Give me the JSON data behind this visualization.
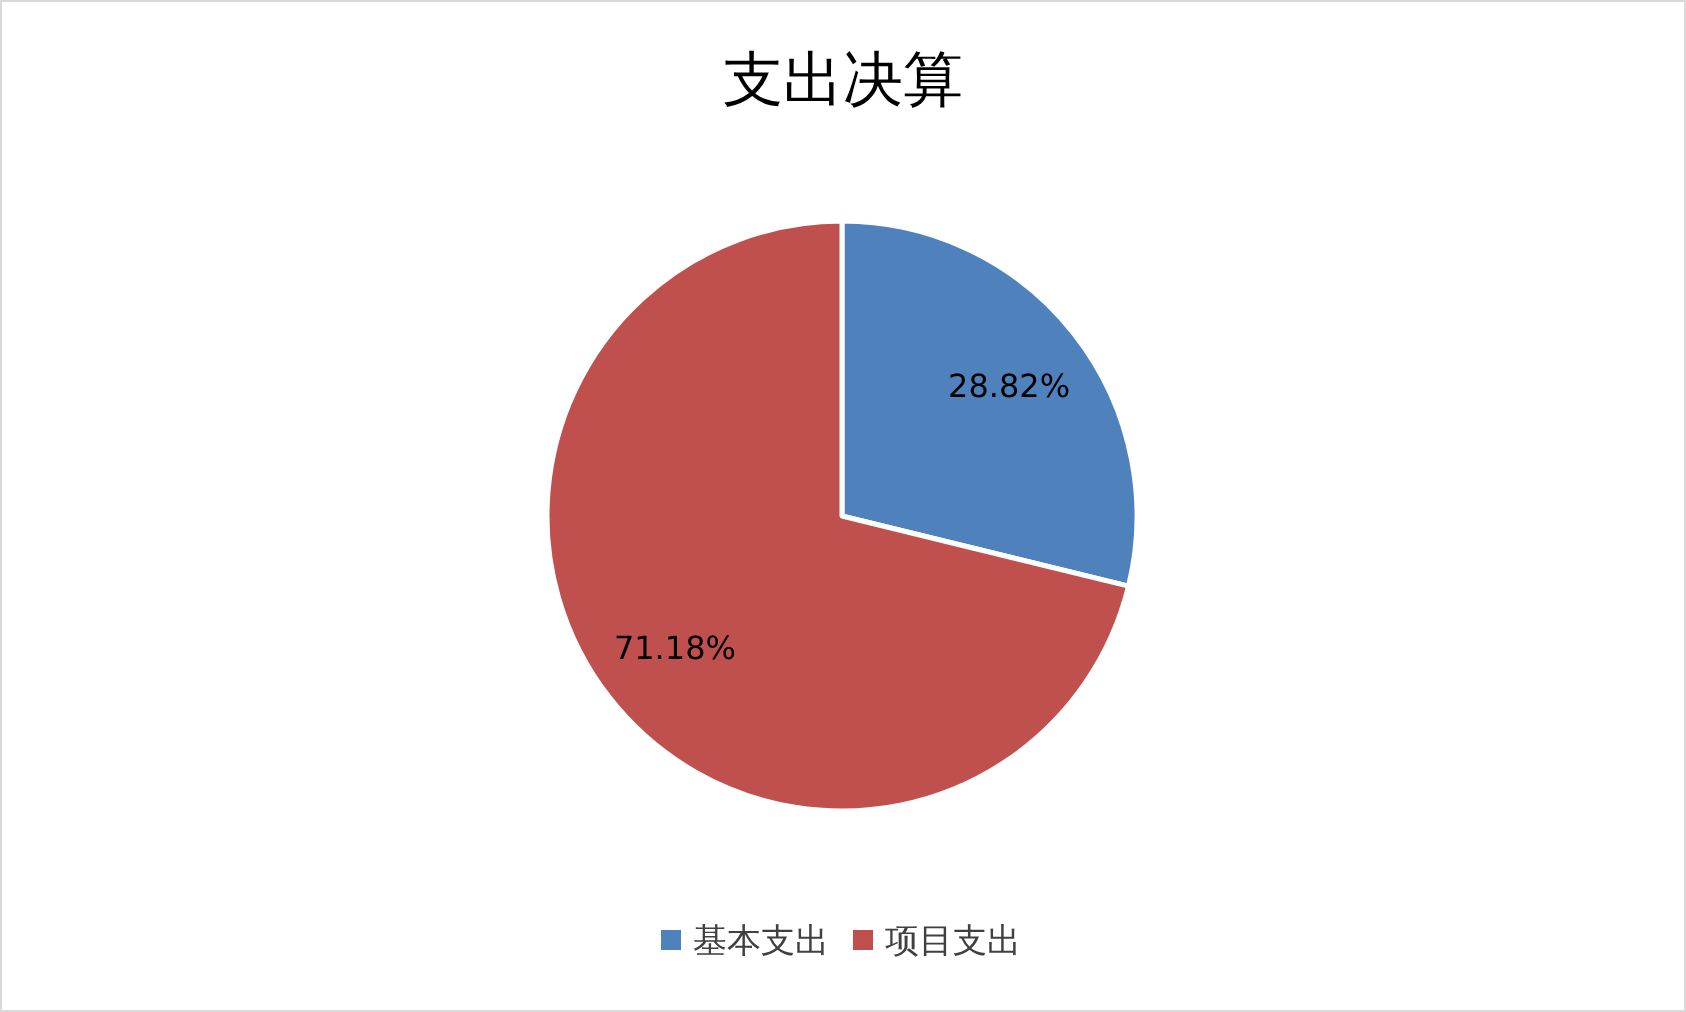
{
  "chart_data": {
    "type": "pie",
    "title": "支出决算",
    "categories": [
      "基本支出",
      "项目支出"
    ],
    "values": [
      28.82,
      71.18
    ],
    "colors": [
      "#4f81bd",
      "#c0504d"
    ],
    "value_labels": [
      "28.82%",
      "71.18%"
    ],
    "legend": "bottom"
  }
}
